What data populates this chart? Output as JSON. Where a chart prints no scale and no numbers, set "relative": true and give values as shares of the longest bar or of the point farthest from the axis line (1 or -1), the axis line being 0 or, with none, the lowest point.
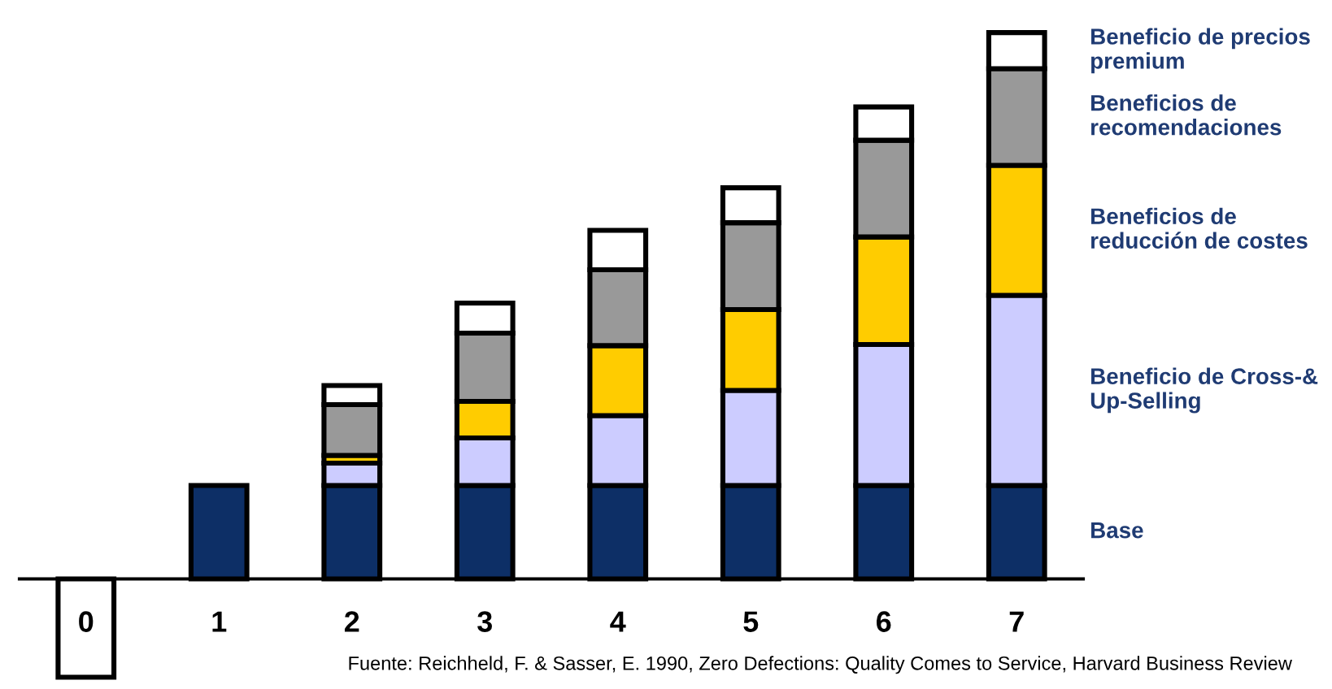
{
  "chart_data": {
    "type": "bar",
    "stacked": true,
    "relative": true,
    "categories": [
      "0",
      "1",
      "2",
      "3",
      "4",
      "5",
      "6",
      "7"
    ],
    "series": [
      {
        "name": "Base",
        "color": "#0d2f66",
        "colors": [
          "#ffffff",
          null,
          null,
          null,
          null,
          null,
          null,
          null
        ],
        "values": [
          -0.18,
          0.171,
          0.171,
          0.171,
          0.171,
          0.171,
          0.171,
          0.171
        ]
      },
      {
        "name": "Beneficio de Cross-& Up-Selling",
        "color": "#ccccff",
        "values": [
          null,
          null,
          0.041,
          0.087,
          0.128,
          0.174,
          0.258,
          0.348
        ]
      },
      {
        "name": "Beneficios de reducción de costes",
        "color": "#ffcc00",
        "values": [
          null,
          null,
          0.014,
          0.067,
          0.128,
          0.148,
          0.197,
          0.238
        ]
      },
      {
        "name": "Beneficios de recomendaciones",
        "color": "#999999",
        "values": [
          null,
          null,
          0.093,
          0.125,
          0.139,
          0.159,
          0.177,
          0.177
        ]
      },
      {
        "name": "Beneficio de precios premium",
        "color": "#ffffff",
        "values": [
          null,
          null,
          0.035,
          0.055,
          0.072,
          0.064,
          0.061,
          0.066
        ]
      }
    ],
    "annotations": [
      "Fuente: Reichheld, F. & Sasser, E. 1990, Zero Defections: Quality Comes to Service, Harvard Business Review"
    ]
  }
}
